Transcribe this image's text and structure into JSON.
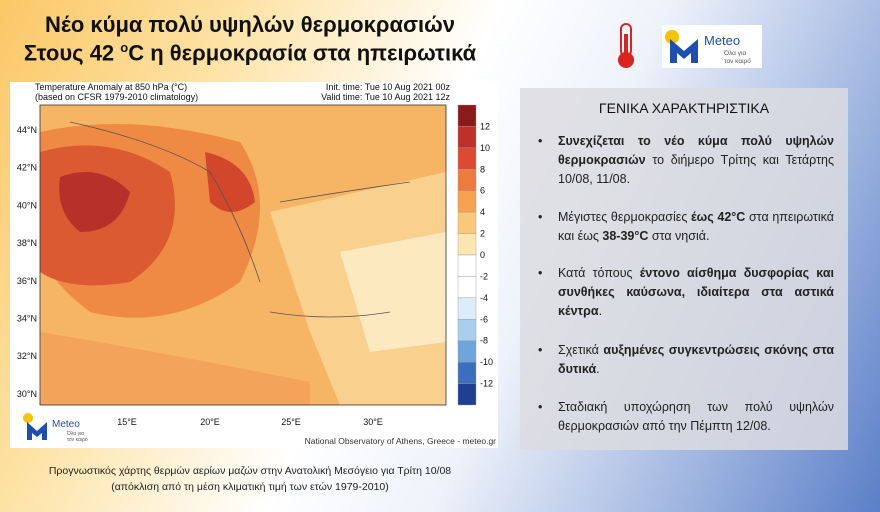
{
  "header": {
    "title_line1": "Νέο κύμα πολύ υψηλών θερμοκρασιών",
    "title_line2_before": "Στους 42 ",
    "title_line2_sup": "o",
    "title_line2_after": "C η θερμοκρασία στα ηπειρωτικά"
  },
  "logo": {
    "name": "Meteo",
    "tagline_1": "Όλα για",
    "tagline_2": "τον καιρό"
  },
  "map": {
    "heading_left_1": "Temperature Anomaly at 850 hPa (°C)",
    "heading_left_2": "(based on CFSR 1979-2010 climatology)",
    "heading_right_1": "Init. time: Tue 10 Aug 2021 00z",
    "heading_right_2": "Valid time: Tue 10 Aug 2021 12z",
    "lat_labels": [
      "44°N",
      "42°N",
      "40°N",
      "38°N",
      "36°N",
      "34°N",
      "32°N",
      "30°N"
    ],
    "lon_labels": [
      "15°E",
      "20°E",
      "25°E",
      "30°E"
    ],
    "colorbar_labels": [
      "12",
      "10",
      "8",
      "6",
      "4",
      "2",
      "0",
      "-2",
      "-4",
      "-6",
      "-8",
      "-10",
      "-12"
    ],
    "credit": "National Observatory of Athens, Greece - meteo.gr",
    "logo_name": "Meteo",
    "logo_tagline_1": "Όλα για",
    "logo_tagline_2": "τον καιρό"
  },
  "caption": {
    "line1": "Προγνωστικός χάρτης θερμών αερίων μαζών στην Ανατολική  Μεσόγειο για Τρίτη 10/08",
    "line2": "(απόκλιση από τη μέση κλιματική τιμή των ετών 1979-2010)"
  },
  "panel": {
    "title": "ΓΕΝΙΚΑ ΧΑΡΑΚΤΗΡΙΣΤΙΚΑ",
    "bullets": [
      [
        {
          "text": "Συνεχίζεται το νέο κύμα πολύ υψηλών θερμοκρασιών",
          "bold": true
        },
        {
          "text": " το διήμερο Τρίτης και Τετάρτης 10/08, 11/08.",
          "bold": false
        }
      ],
      [
        {
          "text": "Μέγιστες θερμοκρασίες ",
          "bold": false
        },
        {
          "text": "έως 42°C",
          "bold": true
        },
        {
          "text": " στα ηπειρωτικά και έως ",
          "bold": false
        },
        {
          "text": "38-39°C",
          "bold": true
        },
        {
          "text": " στα νησιά.",
          "bold": false
        }
      ],
      [
        {
          "text": "Κατά τόπους ",
          "bold": false
        },
        {
          "text": "έντονο αίσθημα δυσφορίας και συνθήκες καύσωνα, ιδιαίτερα στα αστικά κέντρα",
          "bold": true
        },
        {
          "text": ".",
          "bold": false
        }
      ],
      [
        {
          "text": "Σχετικά ",
          "bold": false
        },
        {
          "text": "αυξημένες συγκεντρώσεις σκόνης στα δυτικά",
          "bold": true
        },
        {
          "text": ".",
          "bold": false
        }
      ],
      [
        {
          "text": "Σταδιακή υποχώρηση των πολύ υψηλών θερμοκρασιών από την Πέμπτη 12/08.",
          "bold": false
        }
      ]
    ]
  }
}
